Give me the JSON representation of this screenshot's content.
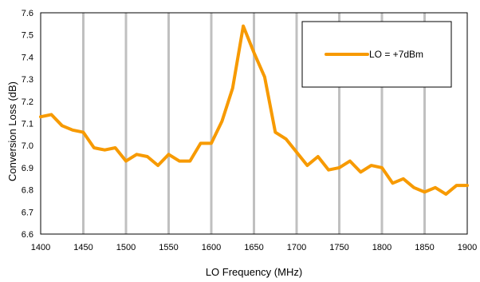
{
  "chart_data": {
    "type": "line",
    "title": "",
    "xlabel": "LO Frequency (MHz)",
    "ylabel": "Conversion Loss (dB)",
    "xlim": [
      1400,
      1900
    ],
    "ylim": [
      6.6,
      7.6
    ],
    "xticks": [
      "1400",
      "1450",
      "1500",
      "1550",
      "1600",
      "1650",
      "1700",
      "1750",
      "1800",
      "1850",
      "1900"
    ],
    "yticks": [
      "6.6",
      "6.7",
      "6.8",
      "6.9",
      "7.0",
      "7.1",
      "7.2",
      "7.3",
      "7.4",
      "7.5",
      "7.6"
    ],
    "grid": "vertical",
    "legend_position": "top-right",
    "series": [
      {
        "name": "LO = +7dBm",
        "color": "#F79A00",
        "x": [
          1400,
          1412.5,
          1425,
          1437.5,
          1450,
          1462.5,
          1475,
          1487.5,
          1500,
          1512.5,
          1525,
          1537.5,
          1550,
          1562.5,
          1575,
          1587.5,
          1600,
          1612.5,
          1625,
          1637.5,
          1650,
          1662.5,
          1675,
          1687.5,
          1700,
          1712.5,
          1725,
          1737.5,
          1750,
          1762.5,
          1775,
          1787.5,
          1800,
          1812.5,
          1825,
          1837.5,
          1850,
          1862.5,
          1875,
          1887.5,
          1900
        ],
        "y": [
          7.13,
          7.14,
          7.09,
          7.07,
          7.06,
          6.99,
          6.98,
          6.99,
          6.93,
          6.96,
          6.95,
          6.91,
          6.96,
          6.93,
          6.93,
          7.01,
          7.01,
          7.11,
          7.26,
          7.54,
          7.42,
          7.31,
          7.06,
          7.03,
          6.97,
          6.91,
          6.95,
          6.89,
          6.9,
          6.93,
          6.88,
          6.91,
          6.9,
          6.83,
          6.85,
          6.81,
          6.79,
          6.81,
          6.78,
          6.82,
          6.82
        ]
      }
    ]
  }
}
